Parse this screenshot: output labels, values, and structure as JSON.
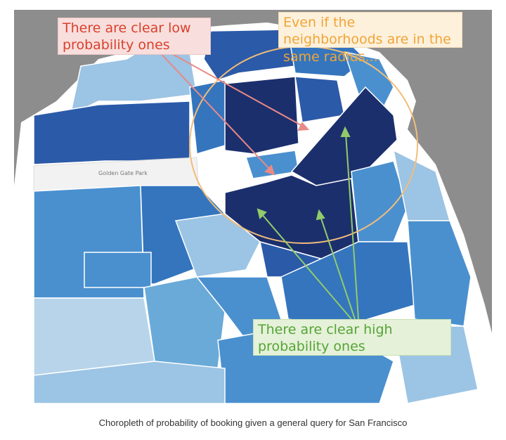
{
  "map": {
    "park_label": "Golden Gate Park",
    "colors": {
      "background": "#8d8d8d",
      "lightest": "#b7d4ea",
      "light": "#9cc4e4",
      "medium_light": "#6aaad8",
      "medium": "#4a90cf",
      "medium_dark": "#3475be",
      "dark": "#2b5aa8",
      "darkest": "#1c2f6d",
      "park": "#f2f2f2",
      "border": "#ffffff"
    }
  },
  "annotations": {
    "low": {
      "text": "There are clear low probability ones",
      "color": "#d9412b",
      "arrow_color": "#e88a86"
    },
    "radius": {
      "text": "Even if the neighborhoods are in the same radius...",
      "color": "#f0a437",
      "circle_color": "#f2bd7a"
    },
    "high": {
      "text": "There are clear high probability ones",
      "color": "#55a437",
      "arrow_color": "#92cb6a"
    }
  },
  "caption": "Choropleth of probability of booking given a general query for San Francisco"
}
